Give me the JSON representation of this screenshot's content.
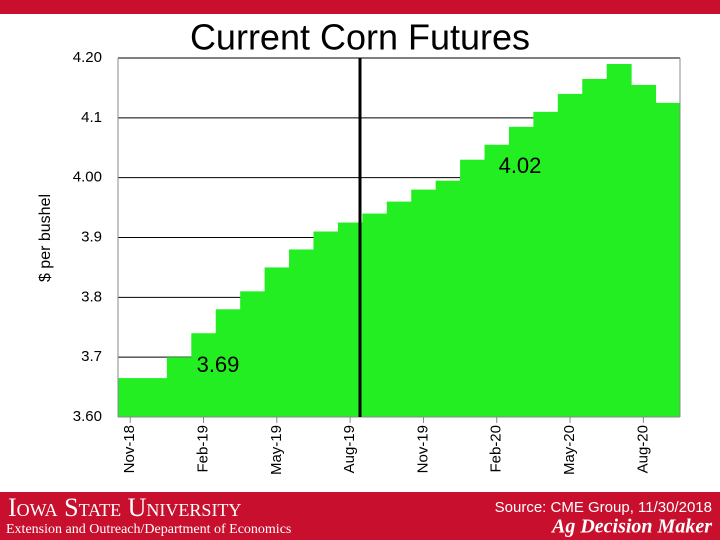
{
  "chart_data": {
    "type": "bar",
    "title": "Current Corn Futures",
    "y_label": "$ per bushel",
    "categories": [
      "Nov-18",
      null,
      null,
      "Feb-19",
      null,
      null,
      "May-19",
      null,
      null,
      "Aug-19",
      null,
      null,
      "Nov-19",
      null,
      null,
      "Feb-20",
      null,
      null,
      "May-20",
      null,
      null,
      "Aug-20",
      null
    ],
    "values": [
      3.665,
      3.665,
      3.7,
      3.74,
      3.78,
      3.81,
      3.85,
      3.88,
      3.91,
      3.925,
      3.94,
      3.96,
      3.98,
      3.995,
      4.03,
      4.055,
      4.085,
      4.11,
      4.14,
      4.165,
      4.19,
      4.155,
      4.125
    ],
    "color": "#22ee22",
    "ylim": [
      3.6,
      4.2
    ],
    "yticks": [
      {
        "value": 3.6,
        "label": "3.60"
      },
      3.7,
      3.8,
      3.9,
      {
        "value": 4.0,
        "label": "4.00"
      },
      4.1,
      {
        "value": 4.2,
        "label": "4.20"
      }
    ],
    "grid": true,
    "annotations": [
      "4.02",
      "3.69"
    ]
  },
  "footer": {
    "university": "Iowa State University",
    "department": "Extension and Outreach/Department of Economics",
    "source": "Source: CME Group, 11/30/2018",
    "brand": "Ag Decision Maker"
  }
}
